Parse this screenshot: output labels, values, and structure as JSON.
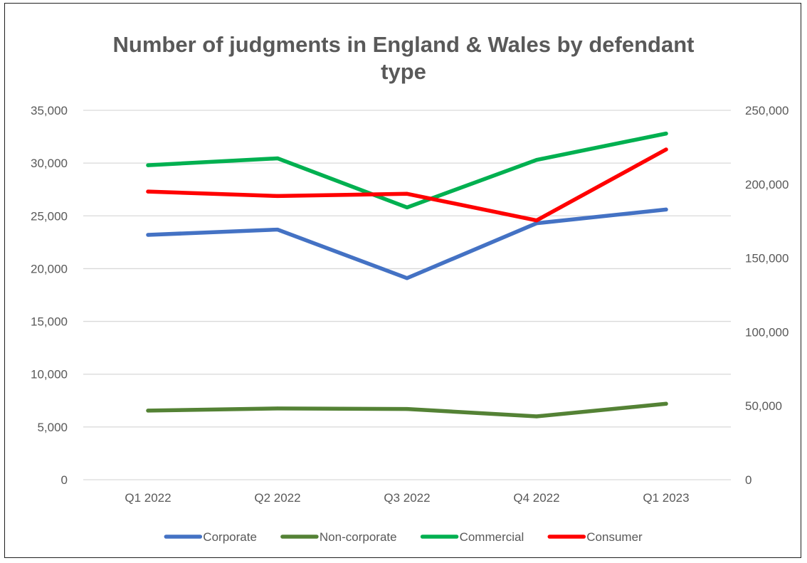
{
  "chart_data": {
    "type": "line",
    "title_lines": [
      "Number of judgments in England & Wales by defendant",
      "type"
    ],
    "categories": [
      "Q1 2022",
      "Q2 2022",
      "Q3 2022",
      "Q4 2022",
      "Q1 2023"
    ],
    "ylim": [
      0,
      35000
    ],
    "y2lim": [
      0,
      250000
    ],
    "yticks": [
      "0",
      "5,000",
      "10,000",
      "15,000",
      "20,000",
      "25,000",
      "30,000",
      "35,000"
    ],
    "y2ticks": [
      "0",
      "50,000",
      "100,000",
      "150,000",
      "200,000",
      "250,000"
    ],
    "grid": true,
    "legend_position": "bottom",
    "series": [
      {
        "name": "Corporate",
        "axis": "left",
        "color": "#4472c4",
        "values": [
          23200,
          23700,
          19100,
          24300,
          25600
        ]
      },
      {
        "name": "Non-corporate",
        "axis": "left",
        "color": "#548235",
        "values": [
          6550,
          6750,
          6700,
          6000,
          7200
        ]
      },
      {
        "name": "Commercial",
        "axis": "left",
        "color": "#00b050",
        "values": [
          29800,
          30450,
          25800,
          30300,
          32800
        ]
      },
      {
        "name": "Consumer",
        "axis": "right",
        "color": "#ff0000",
        "values": [
          195000,
          192000,
          193500,
          175500,
          223500
        ]
      }
    ]
  }
}
